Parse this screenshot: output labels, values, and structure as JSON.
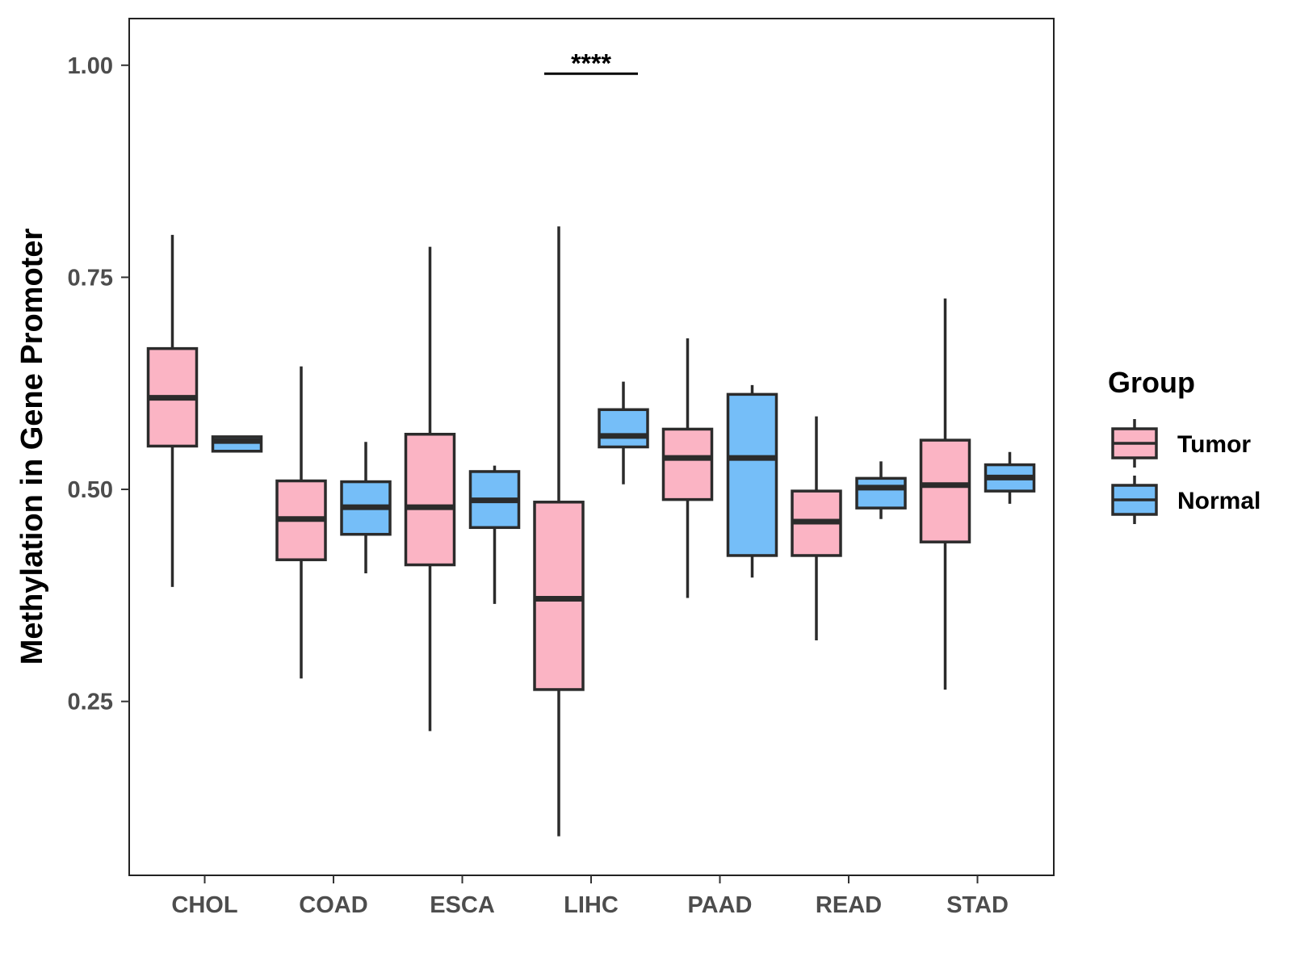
{
  "chart_data": {
    "type": "boxplot",
    "title": "",
    "xlabel": "",
    "ylabel": "Methylation in Gene Promoter",
    "ylim": [
      0.045,
      1.055
    ],
    "yticks": [
      0.25,
      0.5,
      0.75,
      1.0
    ],
    "ytick_labels": [
      "0.25",
      "0.50",
      "0.75",
      "1.00"
    ],
    "categories": [
      "CHOL",
      "COAD",
      "ESCA",
      "LIHC",
      "PAAD",
      "READ",
      "STAD"
    ],
    "legend": {
      "title": "Group",
      "position": "right",
      "items": [
        {
          "label": "Tumor",
          "color": "#FBB4C4"
        },
        {
          "label": "Normal",
          "color": "#75BEF8"
        }
      ]
    },
    "series": [
      {
        "name": "Tumor",
        "color": "#FBB4C4",
        "boxes": [
          {
            "min": 0.385,
            "q1": 0.551,
            "median": 0.608,
            "q3": 0.666,
            "max": 0.8
          },
          {
            "min": 0.277,
            "q1": 0.417,
            "median": 0.465,
            "q3": 0.51,
            "max": 0.645
          },
          {
            "min": 0.215,
            "q1": 0.411,
            "median": 0.479,
            "q3": 0.565,
            "max": 0.786
          },
          {
            "min": 0.091,
            "q1": 0.264,
            "median": 0.371,
            "q3": 0.485,
            "max": 0.81
          },
          {
            "min": 0.372,
            "q1": 0.488,
            "median": 0.537,
            "q3": 0.571,
            "max": 0.678
          },
          {
            "min": 0.322,
            "q1": 0.422,
            "median": 0.462,
            "q3": 0.498,
            "max": 0.586
          },
          {
            "min": 0.264,
            "q1": 0.438,
            "median": 0.505,
            "q3": 0.558,
            "max": 0.725
          }
        ]
      },
      {
        "name": "Normal",
        "color": "#75BEF8",
        "boxes": [
          {
            "min": 0.545,
            "q1": 0.545,
            "median": 0.557,
            "q3": 0.562,
            "max": 0.562
          },
          {
            "min": 0.401,
            "q1": 0.447,
            "median": 0.479,
            "q3": 0.509,
            "max": 0.556
          },
          {
            "min": 0.365,
            "q1": 0.455,
            "median": 0.487,
            "q3": 0.521,
            "max": 0.528
          },
          {
            "min": 0.506,
            "q1": 0.55,
            "median": 0.563,
            "q3": 0.594,
            "max": 0.627
          },
          {
            "min": 0.396,
            "q1": 0.422,
            "median": 0.537,
            "q3": 0.612,
            "max": 0.623
          },
          {
            "min": 0.465,
            "q1": 0.478,
            "median": 0.502,
            "q3": 0.513,
            "max": 0.533
          },
          {
            "min": 0.483,
            "q1": 0.498,
            "median": 0.514,
            "q3": 0.529,
            "max": 0.544
          }
        ]
      }
    ],
    "annotations": [
      {
        "text": "****",
        "category": "LIHC",
        "y": 0.99
      }
    ]
  }
}
